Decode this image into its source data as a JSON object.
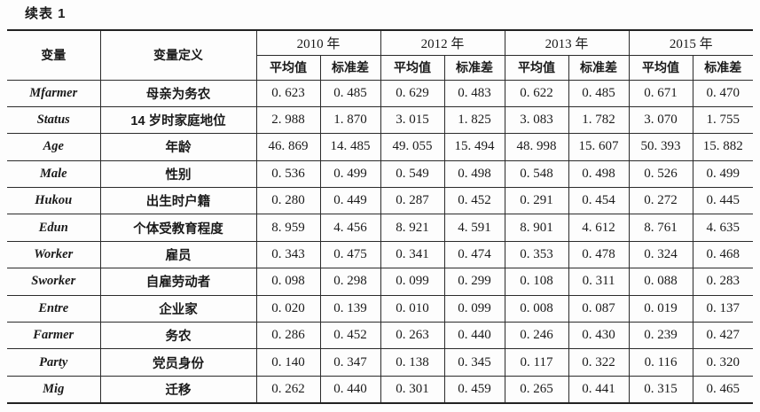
{
  "page": {
    "title": "续表 1"
  },
  "table": {
    "header": {
      "variable": "变量",
      "definition": "变量定义",
      "years": [
        "2010 年",
        "2012 年",
        "2013 年",
        "2015 年"
      ],
      "mean": "平均值",
      "sd": "标准差"
    },
    "rows": [
      {
        "variable": "Mfarmer",
        "definition": "母亲为务农",
        "values": [
          "0. 623",
          "0. 485",
          "0. 629",
          "0. 483",
          "0. 622",
          "0. 485",
          "0. 671",
          "0. 470"
        ]
      },
      {
        "variable": "Status",
        "definition": "14 岁时家庭地位",
        "values": [
          "2. 988",
          "1. 870",
          "3. 015",
          "1. 825",
          "3. 083",
          "1. 782",
          "3. 070",
          "1. 755"
        ]
      },
      {
        "variable": "Age",
        "definition": "年龄",
        "values": [
          "46. 869",
          "14. 485",
          "49. 055",
          "15. 494",
          "48. 998",
          "15. 607",
          "50. 393",
          "15. 882"
        ]
      },
      {
        "variable": "Male",
        "definition": "性别",
        "values": [
          "0. 536",
          "0. 499",
          "0. 549",
          "0. 498",
          "0. 548",
          "0. 498",
          "0. 526",
          "0. 499"
        ]
      },
      {
        "variable": "Hukou",
        "definition": "出生时户籍",
        "values": [
          "0. 280",
          "0. 449",
          "0. 287",
          "0. 452",
          "0. 291",
          "0. 454",
          "0. 272",
          "0. 445"
        ]
      },
      {
        "variable": "Edun",
        "definition": "个体受教育程度",
        "values": [
          "8. 959",
          "4. 456",
          "8. 921",
          "4. 591",
          "8. 901",
          "4. 612",
          "8. 761",
          "4. 635"
        ]
      },
      {
        "variable": "Worker",
        "definition": "雇员",
        "values": [
          "0. 343",
          "0. 475",
          "0. 341",
          "0. 474",
          "0. 353",
          "0. 478",
          "0. 324",
          "0. 468"
        ]
      },
      {
        "variable": "Sworker",
        "definition": "自雇劳动者",
        "values": [
          "0. 098",
          "0. 298",
          "0. 099",
          "0. 299",
          "0. 108",
          "0. 311",
          "0. 088",
          "0. 283"
        ]
      },
      {
        "variable": "Entre",
        "definition": "企业家",
        "values": [
          "0. 020",
          "0. 139",
          "0. 010",
          "0. 099",
          "0. 008",
          "0. 087",
          "0. 019",
          "0. 137"
        ]
      },
      {
        "variable": "Farmer",
        "definition": "务农",
        "values": [
          "0. 286",
          "0. 452",
          "0. 263",
          "0. 440",
          "0. 246",
          "0. 430",
          "0. 239",
          "0. 427"
        ]
      },
      {
        "variable": "Party",
        "definition": "党员身份",
        "values": [
          "0. 140",
          "0. 347",
          "0. 138",
          "0. 345",
          "0. 117",
          "0. 322",
          "0. 116",
          "0. 320"
        ]
      },
      {
        "variable": "Mig",
        "definition": "迁移",
        "values": [
          "0. 262",
          "0. 440",
          "0. 301",
          "0. 459",
          "0. 265",
          "0. 441",
          "0. 315",
          "0. 465"
        ]
      }
    ]
  },
  "colors": {
    "text": "#1a1a1a",
    "grid_line": "#2b2b2b",
    "background": "#fdfdfd"
  }
}
